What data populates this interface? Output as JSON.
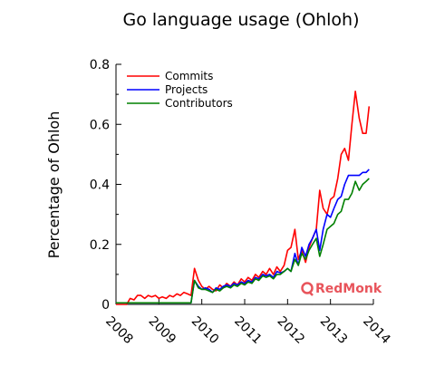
{
  "chart_data": {
    "type": "line",
    "title": "Go language usage (Ohloh)",
    "xlabel": "",
    "ylabel": "Percentage of Ohloh",
    "xlim": [
      2008,
      2014
    ],
    "ylim": [
      0,
      0.8
    ],
    "x_ticks": [
      "2008",
      "2009",
      "2010",
      "2011",
      "2012",
      "2013",
      "2014"
    ],
    "y_ticks": [
      "0",
      "0.2",
      "0.4",
      "0.6",
      "0.8"
    ],
    "grid": false,
    "legend_position": "top-left",
    "series": [
      {
        "name": "Commits",
        "color": "#ff0000",
        "points": [
          [
            2008.0,
            0.0
          ],
          [
            2008.25,
            0.0
          ],
          [
            2008.33,
            0.02
          ],
          [
            2008.42,
            0.015
          ],
          [
            2008.5,
            0.03
          ],
          [
            2008.58,
            0.03
          ],
          [
            2008.67,
            0.02
          ],
          [
            2008.75,
            0.03
          ],
          [
            2008.83,
            0.025
          ],
          [
            2008.92,
            0.03
          ],
          [
            2009.0,
            0.02
          ],
          [
            2009.08,
            0.025
          ],
          [
            2009.17,
            0.02
          ],
          [
            2009.25,
            0.03
          ],
          [
            2009.33,
            0.025
          ],
          [
            2009.42,
            0.035
          ],
          [
            2009.5,
            0.03
          ],
          [
            2009.58,
            0.04
          ],
          [
            2009.67,
            0.035
          ],
          [
            2009.75,
            0.03
          ],
          [
            2009.83,
            0.12
          ],
          [
            2009.92,
            0.08
          ],
          [
            2010.0,
            0.06
          ],
          [
            2010.08,
            0.05
          ],
          [
            2010.17,
            0.06
          ],
          [
            2010.25,
            0.05
          ],
          [
            2010.33,
            0.045
          ],
          [
            2010.42,
            0.065
          ],
          [
            2010.5,
            0.055
          ],
          [
            2010.58,
            0.07
          ],
          [
            2010.67,
            0.06
          ],
          [
            2010.75,
            0.075
          ],
          [
            2010.83,
            0.065
          ],
          [
            2010.92,
            0.085
          ],
          [
            2011.0,
            0.075
          ],
          [
            2011.08,
            0.09
          ],
          [
            2011.17,
            0.08
          ],
          [
            2011.25,
            0.1
          ],
          [
            2011.33,
            0.09
          ],
          [
            2011.42,
            0.11
          ],
          [
            2011.5,
            0.1
          ],
          [
            2011.58,
            0.12
          ],
          [
            2011.67,
            0.1
          ],
          [
            2011.75,
            0.125
          ],
          [
            2011.83,
            0.11
          ],
          [
            2011.92,
            0.13
          ],
          [
            2012.0,
            0.18
          ],
          [
            2012.08,
            0.19
          ],
          [
            2012.17,
            0.25
          ],
          [
            2012.25,
            0.15
          ],
          [
            2012.33,
            0.18
          ],
          [
            2012.42,
            0.14
          ],
          [
            2012.5,
            0.19
          ],
          [
            2012.58,
            0.22
          ],
          [
            2012.67,
            0.25
          ],
          [
            2012.75,
            0.38
          ],
          [
            2012.83,
            0.32
          ],
          [
            2012.92,
            0.3
          ],
          [
            2013.0,
            0.35
          ],
          [
            2013.08,
            0.36
          ],
          [
            2013.17,
            0.42
          ],
          [
            2013.25,
            0.5
          ],
          [
            2013.33,
            0.52
          ],
          [
            2013.42,
            0.48
          ],
          [
            2013.5,
            0.6
          ],
          [
            2013.58,
            0.71
          ],
          [
            2013.67,
            0.62
          ],
          [
            2013.75,
            0.57
          ],
          [
            2013.83,
            0.57
          ],
          [
            2013.9,
            0.66
          ]
        ]
      },
      {
        "name": "Projects",
        "color": "#0000ff",
        "points": [
          [
            2008.0,
            0.005
          ],
          [
            2008.5,
            0.005
          ],
          [
            2009.0,
            0.005
          ],
          [
            2009.5,
            0.005
          ],
          [
            2009.75,
            0.005
          ],
          [
            2009.83,
            0.08
          ],
          [
            2009.92,
            0.06
          ],
          [
            2010.0,
            0.05
          ],
          [
            2010.08,
            0.055
          ],
          [
            2010.17,
            0.05
          ],
          [
            2010.25,
            0.04
          ],
          [
            2010.33,
            0.055
          ],
          [
            2010.42,
            0.05
          ],
          [
            2010.5,
            0.06
          ],
          [
            2010.58,
            0.065
          ],
          [
            2010.67,
            0.06
          ],
          [
            2010.75,
            0.07
          ],
          [
            2010.83,
            0.065
          ],
          [
            2010.92,
            0.075
          ],
          [
            2011.0,
            0.07
          ],
          [
            2011.08,
            0.08
          ],
          [
            2011.17,
            0.075
          ],
          [
            2011.25,
            0.09
          ],
          [
            2011.33,
            0.085
          ],
          [
            2011.42,
            0.1
          ],
          [
            2011.5,
            0.095
          ],
          [
            2011.58,
            0.1
          ],
          [
            2011.67,
            0.09
          ],
          [
            2011.75,
            0.11
          ],
          [
            2011.83,
            0.105
          ],
          [
            2011.92,
            0.11
          ],
          [
            2012.0,
            0.12
          ],
          [
            2012.08,
            0.11
          ],
          [
            2012.17,
            0.17
          ],
          [
            2012.25,
            0.13
          ],
          [
            2012.33,
            0.19
          ],
          [
            2012.42,
            0.16
          ],
          [
            2012.5,
            0.2
          ],
          [
            2012.58,
            0.22
          ],
          [
            2012.67,
            0.25
          ],
          [
            2012.75,
            0.18
          ],
          [
            2012.83,
            0.25
          ],
          [
            2012.92,
            0.3
          ],
          [
            2013.0,
            0.29
          ],
          [
            2013.08,
            0.32
          ],
          [
            2013.17,
            0.35
          ],
          [
            2013.25,
            0.36
          ],
          [
            2013.33,
            0.4
          ],
          [
            2013.42,
            0.43
          ],
          [
            2013.5,
            0.43
          ],
          [
            2013.58,
            0.43
          ],
          [
            2013.67,
            0.43
          ],
          [
            2013.75,
            0.44
          ],
          [
            2013.83,
            0.44
          ],
          [
            2013.9,
            0.45
          ]
        ]
      },
      {
        "name": "Contributors",
        "color": "#008000",
        "points": [
          [
            2008.0,
            0.005
          ],
          [
            2008.5,
            0.005
          ],
          [
            2009.0,
            0.005
          ],
          [
            2009.5,
            0.005
          ],
          [
            2009.75,
            0.005
          ],
          [
            2009.83,
            0.08
          ],
          [
            2009.92,
            0.055
          ],
          [
            2010.0,
            0.05
          ],
          [
            2010.08,
            0.05
          ],
          [
            2010.17,
            0.045
          ],
          [
            2010.25,
            0.04
          ],
          [
            2010.33,
            0.05
          ],
          [
            2010.42,
            0.045
          ],
          [
            2010.5,
            0.055
          ],
          [
            2010.58,
            0.06
          ],
          [
            2010.67,
            0.055
          ],
          [
            2010.75,
            0.065
          ],
          [
            2010.83,
            0.06
          ],
          [
            2010.92,
            0.07
          ],
          [
            2011.0,
            0.065
          ],
          [
            2011.08,
            0.075
          ],
          [
            2011.17,
            0.07
          ],
          [
            2011.25,
            0.085
          ],
          [
            2011.33,
            0.08
          ],
          [
            2011.42,
            0.095
          ],
          [
            2011.5,
            0.09
          ],
          [
            2011.58,
            0.095
          ],
          [
            2011.67,
            0.085
          ],
          [
            2011.75,
            0.1
          ],
          [
            2011.83,
            0.1
          ],
          [
            2011.92,
            0.11
          ],
          [
            2012.0,
            0.12
          ],
          [
            2012.08,
            0.11
          ],
          [
            2012.17,
            0.15
          ],
          [
            2012.25,
            0.13
          ],
          [
            2012.33,
            0.17
          ],
          [
            2012.42,
            0.15
          ],
          [
            2012.5,
            0.18
          ],
          [
            2012.58,
            0.2
          ],
          [
            2012.67,
            0.22
          ],
          [
            2012.75,
            0.16
          ],
          [
            2012.83,
            0.2
          ],
          [
            2012.92,
            0.25
          ],
          [
            2013.0,
            0.26
          ],
          [
            2013.08,
            0.27
          ],
          [
            2013.17,
            0.3
          ],
          [
            2013.25,
            0.31
          ],
          [
            2013.33,
            0.35
          ],
          [
            2013.42,
            0.35
          ],
          [
            2013.5,
            0.37
          ],
          [
            2013.58,
            0.41
          ],
          [
            2013.67,
            0.38
          ],
          [
            2013.75,
            0.4
          ],
          [
            2013.83,
            0.41
          ],
          [
            2013.9,
            0.42
          ]
        ]
      }
    ]
  },
  "watermark": {
    "text": "RedMonk",
    "color": "#e8545b"
  }
}
